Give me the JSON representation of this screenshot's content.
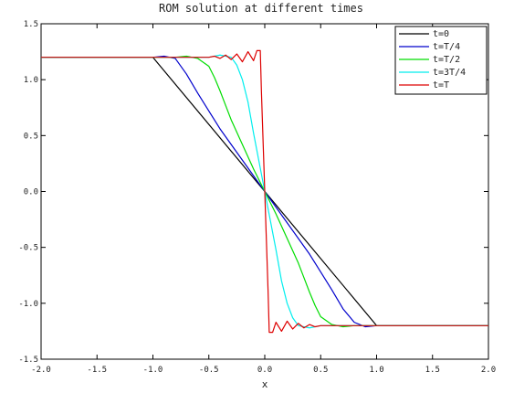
{
  "chart_data": {
    "type": "line",
    "title": "ROM solution at different times",
    "xlabel": "x",
    "ylabel": "",
    "xlim": [
      -2.0,
      2.0
    ],
    "ylim": [
      -1.5,
      1.5
    ],
    "x_ticks": [
      "-2.0",
      "-1.5",
      "-1.0",
      "-0.5",
      "0.0",
      "0.5",
      "1.0",
      "1.5",
      "2.0"
    ],
    "y_ticks": [
      "1.5",
      "1.0",
      "0.5",
      "0.0",
      "-0.5",
      "-1.0",
      "-1.5"
    ],
    "grid": false,
    "legend_position": "top-right",
    "series": [
      {
        "name": "t=0",
        "color": "#000000",
        "points": [
          [
            -2.0,
            1.2
          ],
          [
            -1.0,
            1.2
          ],
          [
            1.0,
            -1.2
          ],
          [
            2.0,
            -1.2
          ]
        ]
      },
      {
        "name": "t=T/4",
        "color": "#0000cc",
        "points": [
          [
            -2.0,
            1.2
          ],
          [
            -1.0,
            1.2
          ],
          [
            -0.9,
            1.21
          ],
          [
            -0.8,
            1.19
          ],
          [
            -0.7,
            1.05
          ],
          [
            -0.6,
            0.88
          ],
          [
            -0.5,
            0.72
          ],
          [
            -0.4,
            0.56
          ],
          [
            -0.3,
            0.42
          ],
          [
            -0.2,
            0.28
          ],
          [
            -0.1,
            0.14
          ],
          [
            0.0,
            0.0
          ],
          [
            0.1,
            -0.14
          ],
          [
            0.2,
            -0.28
          ],
          [
            0.3,
            -0.42
          ],
          [
            0.4,
            -0.56
          ],
          [
            0.5,
            -0.72
          ],
          [
            0.6,
            -0.88
          ],
          [
            0.7,
            -1.05
          ],
          [
            0.8,
            -1.17
          ],
          [
            0.9,
            -1.21
          ],
          [
            1.0,
            -1.2
          ],
          [
            2.0,
            -1.2
          ]
        ]
      },
      {
        "name": "t=T/2",
        "color": "#00dd00",
        "points": [
          [
            -2.0,
            1.2
          ],
          [
            -0.8,
            1.2
          ],
          [
            -0.7,
            1.21
          ],
          [
            -0.6,
            1.19
          ],
          [
            -0.5,
            1.12
          ],
          [
            -0.45,
            1.02
          ],
          [
            -0.4,
            0.9
          ],
          [
            -0.35,
            0.77
          ],
          [
            -0.3,
            0.64
          ],
          [
            -0.2,
            0.42
          ],
          [
            -0.1,
            0.2
          ],
          [
            0.0,
            0.0
          ],
          [
            0.1,
            -0.2
          ],
          [
            0.2,
            -0.42
          ],
          [
            0.3,
            -0.64
          ],
          [
            0.35,
            -0.77
          ],
          [
            0.4,
            -0.9
          ],
          [
            0.45,
            -1.02
          ],
          [
            0.5,
            -1.12
          ],
          [
            0.6,
            -1.19
          ],
          [
            0.7,
            -1.21
          ],
          [
            0.8,
            -1.2
          ],
          [
            2.0,
            -1.2
          ]
        ]
      },
      {
        "name": "t=3T/4",
        "color": "#00eeee",
        "points": [
          [
            -2.0,
            1.2
          ],
          [
            -0.5,
            1.2
          ],
          [
            -0.4,
            1.22
          ],
          [
            -0.3,
            1.2
          ],
          [
            -0.25,
            1.13
          ],
          [
            -0.2,
            1.0
          ],
          [
            -0.15,
            0.8
          ],
          [
            -0.1,
            0.52
          ],
          [
            -0.05,
            0.26
          ],
          [
            0.0,
            0.0
          ],
          [
            0.05,
            -0.26
          ],
          [
            0.1,
            -0.52
          ],
          [
            0.15,
            -0.8
          ],
          [
            0.2,
            -1.0
          ],
          [
            0.25,
            -1.13
          ],
          [
            0.3,
            -1.2
          ],
          [
            0.4,
            -1.22
          ],
          [
            0.5,
            -1.2
          ],
          [
            2.0,
            -1.2
          ]
        ]
      },
      {
        "name": "t=T",
        "color": "#dd0000",
        "points": [
          [
            -2.0,
            1.2
          ],
          [
            -0.6,
            1.2
          ],
          [
            -0.5,
            1.2
          ],
          [
            -0.45,
            1.21
          ],
          [
            -0.4,
            1.19
          ],
          [
            -0.35,
            1.22
          ],
          [
            -0.3,
            1.18
          ],
          [
            -0.25,
            1.23
          ],
          [
            -0.2,
            1.16
          ],
          [
            -0.15,
            1.25
          ],
          [
            -0.1,
            1.17
          ],
          [
            -0.07,
            1.26
          ],
          [
            -0.04,
            1.26
          ],
          [
            -0.03,
            0.9
          ],
          [
            -0.02,
            0.6
          ],
          [
            -0.01,
            0.3
          ],
          [
            0.0,
            0.0
          ],
          [
            0.01,
            -0.3
          ],
          [
            0.02,
            -0.6
          ],
          [
            0.03,
            -0.9
          ],
          [
            0.04,
            -1.26
          ],
          [
            0.07,
            -1.26
          ],
          [
            0.1,
            -1.17
          ],
          [
            0.15,
            -1.25
          ],
          [
            0.2,
            -1.16
          ],
          [
            0.25,
            -1.23
          ],
          [
            0.3,
            -1.18
          ],
          [
            0.35,
            -1.22
          ],
          [
            0.4,
            -1.19
          ],
          [
            0.45,
            -1.21
          ],
          [
            0.5,
            -1.2
          ],
          [
            0.6,
            -1.2
          ],
          [
            2.0,
            -1.2
          ]
        ]
      }
    ]
  }
}
